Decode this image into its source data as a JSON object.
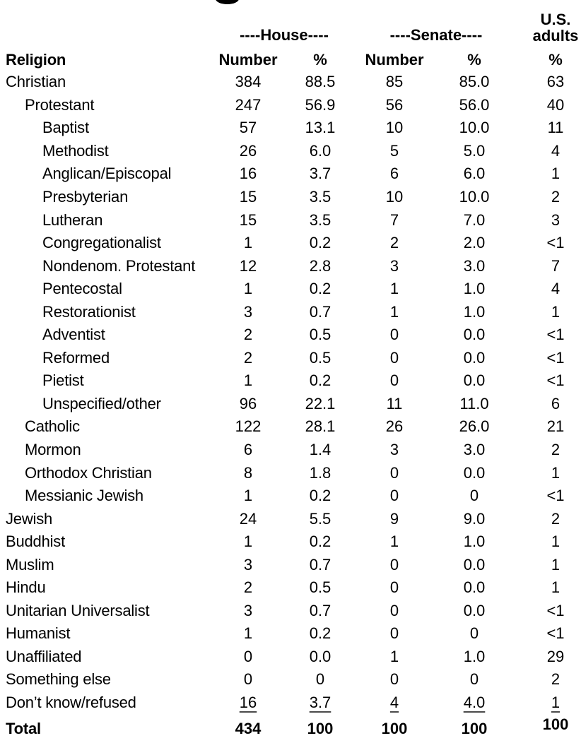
{
  "header": {
    "house_group": "----House----",
    "senate_group": "----Senate----",
    "us_adults_line1": "U.S.",
    "us_adults_line2": "adults",
    "religion_col": "Religion",
    "house_number_col": "Number",
    "house_pct_col": "%",
    "senate_number_col": "Number",
    "senate_pct_col": "%",
    "us_pct_col": "%"
  },
  "table": {
    "rows": [
      {
        "label": "Christian",
        "indent": 0,
        "house_number": "384",
        "house_pct": "88.5",
        "senate_number": "85",
        "senate_pct": "85.0",
        "us_pct": "63"
      },
      {
        "label": "Protestant",
        "indent": 1,
        "house_number": "247",
        "house_pct": "56.9",
        "senate_number": "56",
        "senate_pct": "56.0",
        "us_pct": "40"
      },
      {
        "label": "Baptist",
        "indent": 2,
        "house_number": "57",
        "house_pct": "13.1",
        "senate_number": "10",
        "senate_pct": "10.0",
        "us_pct": "11"
      },
      {
        "label": "Methodist",
        "indent": 2,
        "house_number": "26",
        "house_pct": "6.0",
        "senate_number": "5",
        "senate_pct": "5.0",
        "us_pct": "4"
      },
      {
        "label": "Anglican/Episcopal",
        "indent": 2,
        "house_number": "16",
        "house_pct": "3.7",
        "senate_number": "6",
        "senate_pct": "6.0",
        "us_pct": "1"
      },
      {
        "label": "Presbyterian",
        "indent": 2,
        "house_number": "15",
        "house_pct": "3.5",
        "senate_number": "10",
        "senate_pct": "10.0",
        "us_pct": "2"
      },
      {
        "label": "Lutheran",
        "indent": 2,
        "house_number": "15",
        "house_pct": "3.5",
        "senate_number": "7",
        "senate_pct": "7.0",
        "us_pct": "3"
      },
      {
        "label": "Congregationalist",
        "indent": 2,
        "house_number": "1",
        "house_pct": "0.2",
        "senate_number": "2",
        "senate_pct": "2.0",
        "us_pct": "<1"
      },
      {
        "label": "Nondenom. Protestant",
        "indent": 2,
        "house_number": "12",
        "house_pct": "2.8",
        "senate_number": "3",
        "senate_pct": "3.0",
        "us_pct": "7"
      },
      {
        "label": "Pentecostal",
        "indent": 2,
        "house_number": "1",
        "house_pct": "0.2",
        "senate_number": "1",
        "senate_pct": "1.0",
        "us_pct": "4"
      },
      {
        "label": "Restorationist",
        "indent": 2,
        "house_number": "3",
        "house_pct": "0.7",
        "senate_number": "1",
        "senate_pct": "1.0",
        "us_pct": "1"
      },
      {
        "label": "Adventist",
        "indent": 2,
        "house_number": "2",
        "house_pct": "0.5",
        "senate_number": "0",
        "senate_pct": "0.0",
        "us_pct": "<1"
      },
      {
        "label": "Reformed",
        "indent": 2,
        "house_number": "2",
        "house_pct": "0.5",
        "senate_number": "0",
        "senate_pct": "0.0",
        "us_pct": "<1"
      },
      {
        "label": "Pietist",
        "indent": 2,
        "house_number": "1",
        "house_pct": "0.2",
        "senate_number": "0",
        "senate_pct": "0.0",
        "us_pct": "<1"
      },
      {
        "label": "Unspecified/other",
        "indent": 2,
        "house_number": "96",
        "house_pct": "22.1",
        "senate_number": "11",
        "senate_pct": "11.0",
        "us_pct": "6"
      },
      {
        "label": "Catholic",
        "indent": 1,
        "house_number": "122",
        "house_pct": "28.1",
        "senate_number": "26",
        "senate_pct": "26.0",
        "us_pct": "21"
      },
      {
        "label": "Mormon",
        "indent": 1,
        "house_number": "6",
        "house_pct": "1.4",
        "senate_number": "3",
        "senate_pct": "3.0",
        "us_pct": "2"
      },
      {
        "label": "Orthodox Christian",
        "indent": 1,
        "house_number": "8",
        "house_pct": "1.8",
        "senate_number": "0",
        "senate_pct": "0.0",
        "us_pct": "1"
      },
      {
        "label": "Messianic Jewish",
        "indent": 1,
        "house_number": "1",
        "house_pct": "0.2",
        "senate_number": "0",
        "senate_pct": "0",
        "us_pct": "<1"
      },
      {
        "label": "Jewish",
        "indent": 0,
        "house_number": "24",
        "house_pct": "5.5",
        "senate_number": "9",
        "senate_pct": "9.0",
        "us_pct": "2"
      },
      {
        "label": "Buddhist",
        "indent": 0,
        "house_number": "1",
        "house_pct": "0.2",
        "senate_number": "1",
        "senate_pct": "1.0",
        "us_pct": "1"
      },
      {
        "label": "Muslim",
        "indent": 0,
        "house_number": "3",
        "house_pct": "0.7",
        "senate_number": "0",
        "senate_pct": "0.0",
        "us_pct": "1"
      },
      {
        "label": "Hindu",
        "indent": 0,
        "house_number": "2",
        "house_pct": "0.5",
        "senate_number": "0",
        "senate_pct": "0.0",
        "us_pct": "1"
      },
      {
        "label": "Unitarian Universalist",
        "indent": 0,
        "house_number": "3",
        "house_pct": "0.7",
        "senate_number": "0",
        "senate_pct": "0.0",
        "us_pct": "<1"
      },
      {
        "label": "Humanist",
        "indent": 0,
        "house_number": "1",
        "house_pct": "0.2",
        "senate_number": "0",
        "senate_pct": "0",
        "us_pct": "<1"
      },
      {
        "label": "Unaffiliated",
        "indent": 0,
        "house_number": "0",
        "house_pct": "0.0",
        "senate_number": "1",
        "senate_pct": "1.0",
        "us_pct": "29"
      },
      {
        "label": "Something else",
        "indent": 0,
        "house_number": "0",
        "house_pct": "0",
        "senate_number": "0",
        "senate_pct": "0",
        "us_pct": "2"
      },
      {
        "label": "Don’t know/refused",
        "indent": 0,
        "underline": true,
        "house_number": "16",
        "house_pct": "3.7",
        "senate_number": "4",
        "senate_pct": "4.0",
        "us_pct": "1"
      },
      {
        "label": "Total",
        "indent": 0,
        "bold": true,
        "house_number": "434",
        "house_pct": "100",
        "senate_number": "100",
        "senate_pct": "100",
        "us_pct": "100"
      }
    ]
  },
  "colors": {
    "text": "#000000",
    "background": "#ffffff"
  }
}
